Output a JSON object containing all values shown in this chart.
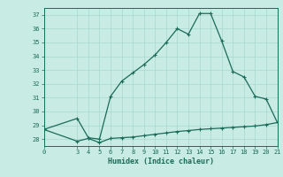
{
  "xlabel": "Humidex (Indice chaleur)",
  "background_color": "#c8ebe3",
  "grid_color": "#a8d8cf",
  "line_color": "#1a6b5a",
  "x_upper": [
    0,
    3,
    4,
    5,
    6,
    7,
    8,
    9,
    10,
    11,
    12,
    13,
    14,
    15,
    16,
    17,
    18,
    19,
    20,
    21
  ],
  "y_upper": [
    28.7,
    29.5,
    28.1,
    28.0,
    31.1,
    32.2,
    32.8,
    33.4,
    34.1,
    35.0,
    36.0,
    35.6,
    37.1,
    37.1,
    35.1,
    32.9,
    32.5,
    31.1,
    30.9,
    29.2
  ],
  "x_lower": [
    0,
    3,
    4,
    5,
    6,
    7,
    8,
    9,
    10,
    11,
    12,
    13,
    14,
    15,
    16,
    17,
    18,
    19,
    20,
    21
  ],
  "y_lower": [
    28.7,
    27.85,
    28.05,
    27.75,
    28.05,
    28.1,
    28.15,
    28.25,
    28.35,
    28.45,
    28.55,
    28.62,
    28.7,
    28.75,
    28.8,
    28.85,
    28.9,
    28.95,
    29.05,
    29.2
  ],
  "xlim": [
    0,
    21
  ],
  "ylim": [
    27.5,
    37.5
  ],
  "yticks": [
    28,
    29,
    30,
    31,
    32,
    33,
    34,
    35,
    36,
    37
  ],
  "xticks": [
    0,
    3,
    4,
    5,
    6,
    7,
    8,
    9,
    10,
    11,
    12,
    13,
    14,
    15,
    16,
    17,
    18,
    19,
    20,
    21
  ],
  "markersize": 3.5,
  "linewidth": 0.9
}
